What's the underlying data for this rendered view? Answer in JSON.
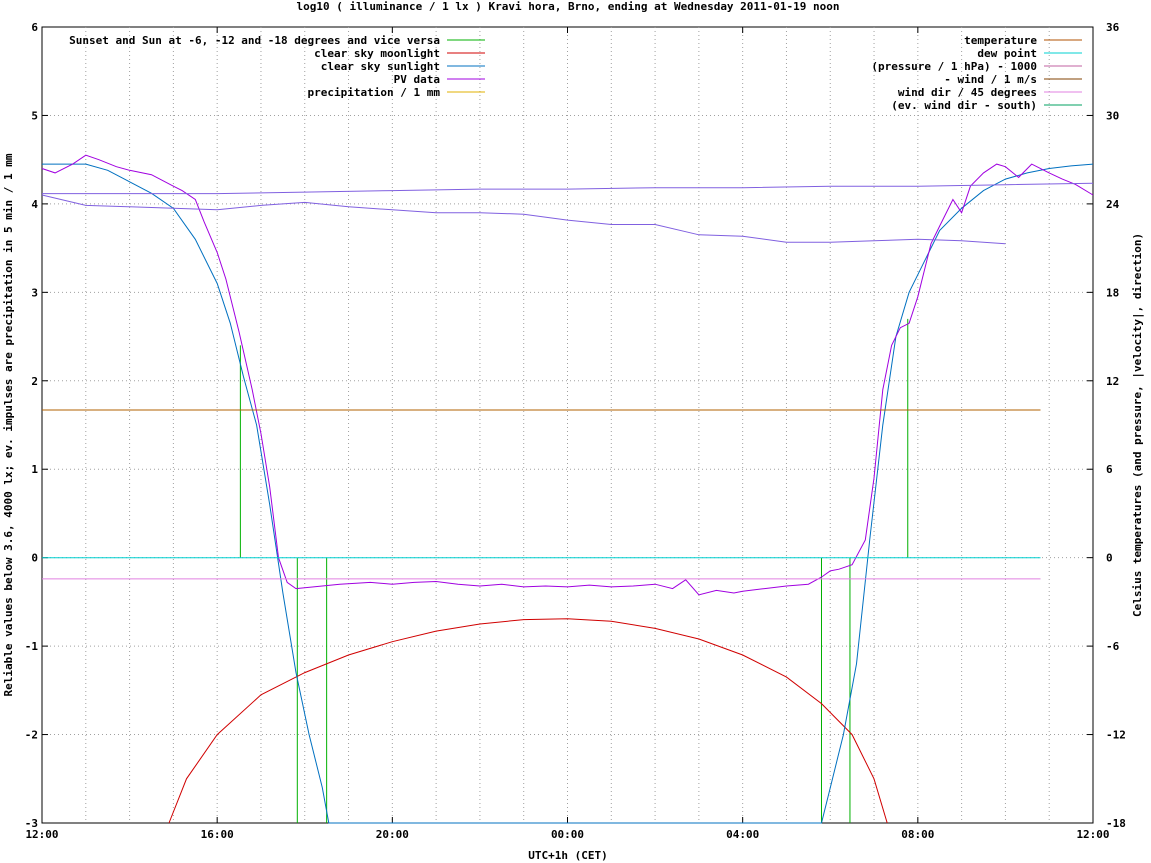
{
  "chart_data": {
    "type": "line",
    "title": "log10 ( illuminance / 1 lx ) Kravi hora, Brno, ending at Wednesday 2011-01-19 noon",
    "xlabel": "UTC+1h (CET)",
    "ylabel": "Reliable values below 3.6, 4000 lx; ev. impulses are precipitation in 5 min / 1 mm",
    "y2label": "Celsius temperatures (and pressure, |velocity|, direction)",
    "x_unit": "hours since 12:00",
    "xlim": [
      0,
      24
    ],
    "ylim": [
      -3,
      6
    ],
    "y2lim": [
      -18,
      36
    ],
    "grid": true,
    "x_ticks": [
      {
        "v": 0,
        "label": "12:00"
      },
      {
        "v": 4,
        "label": "16:00"
      },
      {
        "v": 8,
        "label": "20:00"
      },
      {
        "v": 12,
        "label": "00:00"
      },
      {
        "v": 16,
        "label": "04:00"
      },
      {
        "v": 20,
        "label": "08:00"
      },
      {
        "v": 24,
        "label": "12:00"
      }
    ],
    "y_ticks": [
      {
        "v": -3,
        "label": "-3"
      },
      {
        "v": -2,
        "label": "-2"
      },
      {
        "v": -1,
        "label": "-1"
      },
      {
        "v": 0,
        "label": "0"
      },
      {
        "v": 1,
        "label": "1"
      },
      {
        "v": 2,
        "label": "2"
      },
      {
        "v": 3,
        "label": "3"
      },
      {
        "v": 4,
        "label": "4"
      },
      {
        "v": 5,
        "label": "5"
      },
      {
        "v": 6,
        "label": "6"
      }
    ],
    "y2_ticks": [
      {
        "v": -18,
        "label": "-18"
      },
      {
        "v": -12,
        "label": "-12"
      },
      {
        "v": -6,
        "label": "-6"
      },
      {
        "v": 0,
        "label": "0"
      },
      {
        "v": 6,
        "label": "6"
      },
      {
        "v": 12,
        "label": "12"
      },
      {
        "v": 18,
        "label": "18"
      },
      {
        "v": 24,
        "label": "24"
      },
      {
        "v": 30,
        "label": "30"
      },
      {
        "v": 36,
        "label": "36"
      }
    ],
    "legend_left": [
      {
        "name": "Sunset and Sun at -6, -12 and -18 degrees and vice versa",
        "color": "#00b000"
      },
      {
        "name": "clear sky moonlight",
        "color": "#d00000"
      },
      {
        "name": "clear sky sunlight",
        "color": "#0070c0"
      },
      {
        "name": "PV data",
        "color": "#a000e0"
      },
      {
        "name": "precipitation / 1 mm",
        "color": "#e0b000"
      }
    ],
    "legend_right": [
      {
        "name": "temperature",
        "color": "#b05000"
      },
      {
        "name": "dew point",
        "color": "#00d0d0"
      },
      {
        "name": "(pressure / 1 hPa) - 1000",
        "color": "#c060a0"
      },
      {
        "name": "- wind / 1 m/s",
        "color": "#804000"
      },
      {
        "name": "wind dir / 45 degrees",
        "color": "#e080e0"
      },
      {
        "name": "(ev. wind dir - south)",
        "color": "#00a060"
      }
    ],
    "series": [
      {
        "name": "Sunset and Sun at -6, -12 and -18 degrees and vice versa",
        "color": "#00b000",
        "kind": "impulse",
        "x": [
          4.53,
          5.17,
          5.83,
          6.5,
          17.8,
          18.45,
          19.1,
          19.77
        ],
        "y": [
          2.4,
          0,
          -3,
          -3,
          -3,
          -3,
          0,
          2.7
        ]
      },
      {
        "name": "clear sky moonlight",
        "color": "#d00000",
        "x": [
          2.9,
          3.3,
          4.0,
          5.0,
          6.0,
          7.0,
          8.0,
          9.0,
          10.0,
          11.0,
          12.0,
          13.0,
          14.0,
          15.0,
          16.0,
          17.0,
          17.8,
          18.5,
          19.0,
          19.3
        ],
        "y": [
          -3.0,
          -2.5,
          -2.0,
          -1.55,
          -1.3,
          -1.1,
          -0.95,
          -0.83,
          -0.75,
          -0.7,
          -0.69,
          -0.72,
          -0.8,
          -0.92,
          -1.1,
          -1.35,
          -1.65,
          -2.0,
          -2.5,
          -3.0
        ]
      },
      {
        "name": "clear sky sunlight",
        "color": "#0070c0",
        "x": [
          0,
          0.5,
          1.0,
          1.5,
          2.0,
          2.5,
          3.0,
          3.5,
          4.0,
          4.3,
          4.6,
          4.9,
          5.2,
          5.5,
          5.8,
          6.1,
          6.4,
          6.55,
          17.8,
          18.0,
          18.3,
          18.6,
          18.9,
          19.2,
          19.5,
          19.8,
          20.1,
          20.5,
          21.0,
          21.5,
          22.0,
          22.5,
          23.0,
          23.5,
          24.0
        ],
        "y": [
          4.45,
          4.45,
          4.45,
          4.38,
          4.25,
          4.12,
          3.95,
          3.6,
          3.1,
          2.65,
          2.05,
          1.5,
          0.6,
          -0.4,
          -1.3,
          -2.0,
          -2.6,
          -3.0,
          -3.0,
          -2.6,
          -2.0,
          -1.2,
          0.2,
          1.5,
          2.5,
          3.0,
          3.3,
          3.7,
          3.95,
          4.15,
          4.28,
          4.35,
          4.4,
          4.43,
          4.45
        ]
      },
      {
        "name": "PV data",
        "color": "#a000e0",
        "x": [
          0,
          0.3,
          0.7,
          1.0,
          1.3,
          1.7,
          2.0,
          2.5,
          3.0,
          3.2,
          3.5,
          3.7,
          4.0,
          4.2,
          4.5,
          4.8,
          5.0,
          5.2,
          5.4,
          5.6,
          5.8,
          6.2,
          6.8,
          7.5,
          8.0,
          8.5,
          9.0,
          9.5,
          10.0,
          10.5,
          11.0,
          11.5,
          12.0,
          12.5,
          13.0,
          13.5,
          14.0,
          14.4,
          14.7,
          15.0,
          15.4,
          15.8,
          16.0,
          16.5,
          17.0,
          17.5,
          17.8,
          18.0,
          18.2,
          18.5,
          18.8,
          19.0,
          19.2,
          19.4,
          19.6,
          19.8,
          20.0,
          20.3,
          20.5,
          20.8,
          21.0,
          21.2,
          21.5,
          21.8,
          22.0,
          22.3,
          22.6,
          23.0,
          23.3,
          23.6,
          24.0
        ],
        "y": [
          4.4,
          4.35,
          4.45,
          4.55,
          4.5,
          4.42,
          4.38,
          4.33,
          4.2,
          4.15,
          4.05,
          3.8,
          3.45,
          3.15,
          2.55,
          1.9,
          1.4,
          0.8,
          0.0,
          -0.28,
          -0.35,
          -0.33,
          -0.3,
          -0.28,
          -0.3,
          -0.28,
          -0.27,
          -0.3,
          -0.32,
          -0.3,
          -0.33,
          -0.32,
          -0.33,
          -0.31,
          -0.33,
          -0.32,
          -0.3,
          -0.35,
          -0.25,
          -0.42,
          -0.37,
          -0.4,
          -0.38,
          -0.35,
          -0.32,
          -0.3,
          -0.22,
          -0.15,
          -0.13,
          -0.08,
          0.2,
          0.9,
          1.9,
          2.4,
          2.6,
          2.65,
          2.95,
          3.55,
          3.75,
          4.05,
          3.9,
          4.2,
          4.35,
          4.45,
          4.42,
          4.3,
          4.45,
          4.35,
          4.28,
          4.22,
          4.1
        ]
      },
      {
        "name": "temperature",
        "color": "#8060e0",
        "axis": "y2",
        "x": [
          0,
          1,
          2,
          3,
          4,
          5,
          6,
          7,
          8,
          9,
          10,
          11,
          12,
          13,
          14,
          15,
          16,
          17,
          18,
          19,
          20,
          21,
          22
        ],
        "y": [
          24.6,
          23.9,
          23.8,
          23.7,
          23.6,
          23.9,
          24.1,
          23.8,
          23.6,
          23.4,
          23.4,
          23.3,
          22.9,
          22.6,
          22.6,
          21.9,
          21.8,
          21.4,
          21.4,
          21.5,
          21.6,
          21.5,
          21.3
        ]
      },
      {
        "name": "(pressure / 1 hPa) - 1000",
        "color": "#8060e0",
        "axis": "y2",
        "x": [
          0,
          2,
          4,
          6,
          8,
          10,
          12,
          14,
          16,
          18,
          20,
          22,
          24
        ],
        "y": [
          24.7,
          24.7,
          24.7,
          24.8,
          24.9,
          25.0,
          25.0,
          25.1,
          25.1,
          25.2,
          25.2,
          25.3,
          25.4
        ]
      },
      {
        "name": "- wind / 1 m/s",
        "color": "#b06000",
        "flat": true,
        "x": [
          0,
          22.8
        ],
        "y": [
          1.67,
          1.67
        ]
      },
      {
        "name": "dew point",
        "color": "#00d0d0",
        "flat": true,
        "x": [
          0,
          22.8
        ],
        "y": [
          0,
          0
        ]
      },
      {
        "name": "wind dir / 45 degrees",
        "color": "#e080e0",
        "flat": true,
        "x": [
          0,
          22.8
        ],
        "y": [
          -0.24,
          -0.24
        ]
      }
    ]
  }
}
